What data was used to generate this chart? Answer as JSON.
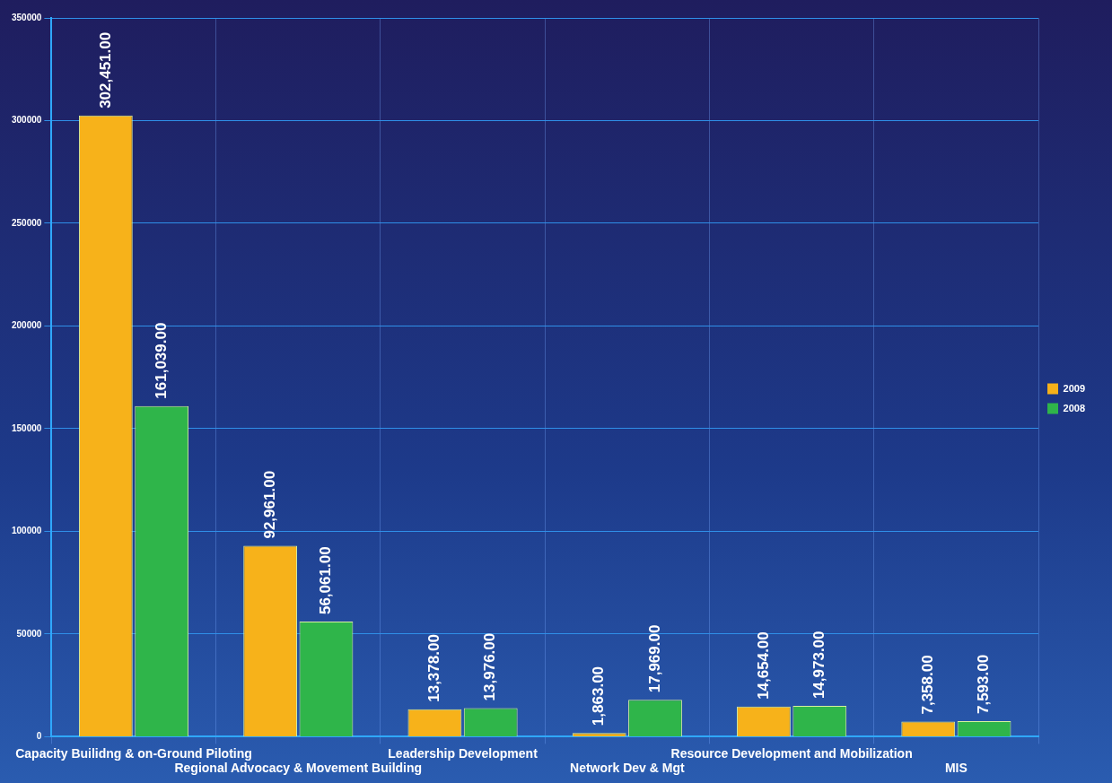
{
  "chart_data": {
    "type": "bar",
    "categories": [
      "Capacity Builidng & on-Ground Piloting",
      "Regional Advocacy & Movement Building",
      "Leadership Development",
      "Network Dev & Mgt",
      "Resource Development and Mobilization",
      "MIS"
    ],
    "series": [
      {
        "name": "2009",
        "color": "#f7b21a",
        "values": [
          302451,
          92961,
          13378,
          1863,
          14654,
          7358
        ],
        "value_labels": [
          "302,451.00",
          "92,961.00",
          "13,378.00",
          "1,863.00",
          "14,654.00",
          "7,358.00"
        ]
      },
      {
        "name": "2008",
        "color": "#2fb54a",
        "values": [
          161039,
          56061,
          13976,
          17969,
          14973,
          7593
        ],
        "value_labels": [
          "161,039.00",
          "56,061.00",
          "13,976.00",
          "17,969.00",
          "14,973.00",
          "7,593.00"
        ]
      }
    ],
    "ylim": [
      0,
      350000
    ],
    "yticks": [
      0,
      50000,
      100000,
      150000,
      200000,
      250000,
      300000,
      350000
    ],
    "grid": true,
    "legend": "right"
  }
}
